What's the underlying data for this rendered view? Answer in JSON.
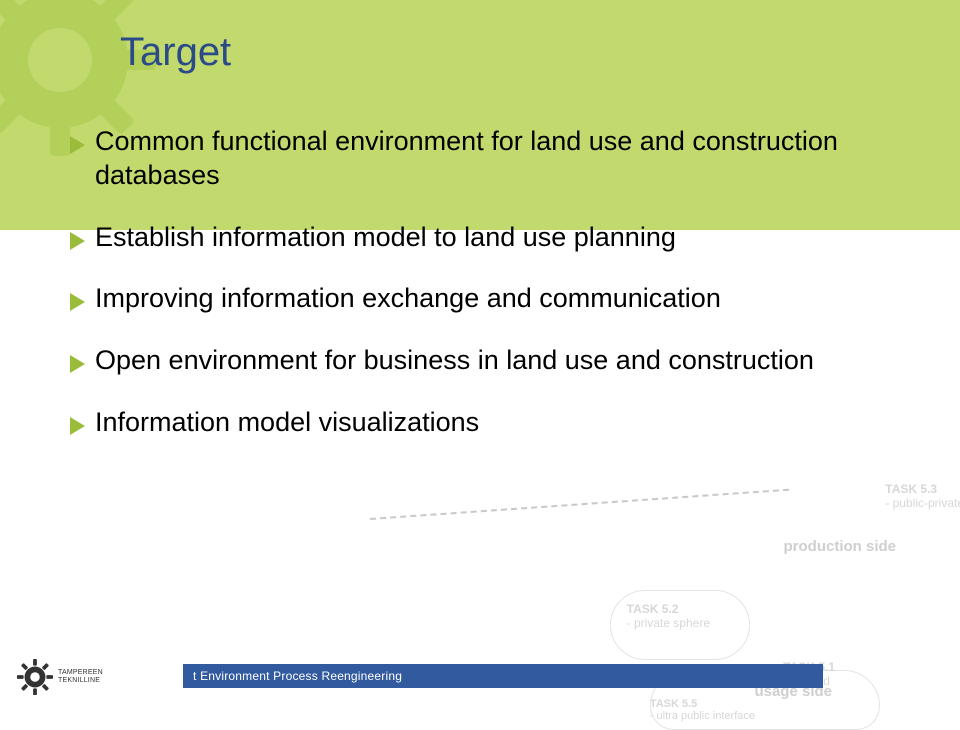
{
  "title": "Target",
  "bullets": [
    "Common functional environment for land use and construction databases",
    "Establish information model to land use planning",
    "Improving information exchange and communication",
    "Open environment for business in land use and construction",
    "Information model visualizations"
  ],
  "footer": "t Environment Process Reengineering",
  "logo_text_top": "TAMPEREEN",
  "logo_text_bottom": "TEKNILLINE",
  "colors": {
    "band": "#c1d96d",
    "gear": "#a9c94e",
    "title": "#2a4b88",
    "bullet_marker": "#9bbc3a",
    "footer_bar": "#325a9e"
  },
  "ghost": {
    "task52_l1": "TASK 5.2",
    "task52_l2": "- private sphere",
    "task53_l1": "TASK 5.3",
    "task53_l2": "- public-private i",
    "task51_l1": "TASK 5.1",
    "task51_l2": "- testbed",
    "task55_l1": "TASK 5.5",
    "task55_l2": "- ultra public interface",
    "prod": "production side",
    "usage": "usage side"
  }
}
